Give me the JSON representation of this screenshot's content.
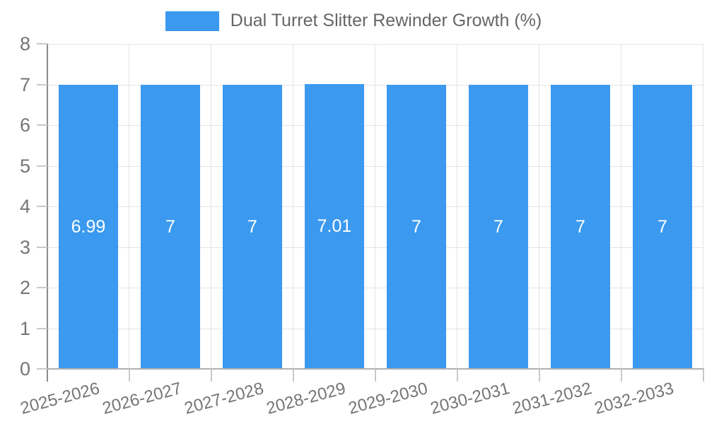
{
  "legend": {
    "label": "Dual Turret Slitter Rewinder Growth (%)",
    "swatch_color": "#3b99ef"
  },
  "chart_data": {
    "type": "bar",
    "title": "Dual Turret Slitter Rewinder Growth (%)",
    "categories": [
      "2025-2026",
      "2026-2027",
      "2027-2028",
      "2028-2029",
      "2029-2030",
      "2030-2031",
      "2031-2032",
      "2032-2033"
    ],
    "series": [
      {
        "name": "Dual Turret Slitter Rewinder Growth (%)",
        "values": [
          6.99,
          7,
          7,
          7.01,
          7,
          7,
          7,
          7
        ],
        "bar_labels": [
          "6.99",
          "7",
          "7",
          "7.01",
          "7",
          "7",
          "7",
          "7"
        ]
      }
    ],
    "xlabel": "",
    "ylabel": "",
    "ylim": [
      0,
      8
    ],
    "yticks": [
      "0",
      "1",
      "2",
      "3",
      "4",
      "5",
      "6",
      "7",
      "8"
    ],
    "grid": true,
    "legend_position": "top-center",
    "x_label_rotation_deg": -15,
    "colors": {
      "bar": "#3b99ef",
      "bar_label": "#ffffff",
      "grid": "#e4e4e4",
      "y_axis_line": "#8c8c8c",
      "x_axis_line": "#b0b0b0",
      "tick": "#c9c9c9",
      "tick_label": "#757575",
      "legend_text": "#666666"
    }
  }
}
